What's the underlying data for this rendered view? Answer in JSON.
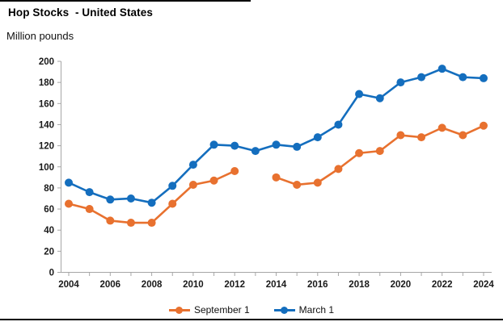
{
  "header": {
    "title": "Hop Stocks  - United States",
    "units_label": "Million pounds"
  },
  "chart_data": {
    "type": "line",
    "title": "Hop Stocks - United States",
    "ylabel": "Million pounds",
    "xlabel": "",
    "ylim": [
      0,
      200
    ],
    "yticks": [
      0,
      20,
      40,
      60,
      80,
      100,
      120,
      140,
      160,
      180,
      200
    ],
    "xticks": [
      2004,
      2006,
      2008,
      2010,
      2012,
      2014,
      2016,
      2018,
      2020,
      2022,
      2024
    ],
    "x": [
      2004,
      2005,
      2006,
      2007,
      2008,
      2009,
      2010,
      2011,
      2012,
      2013,
      2014,
      2015,
      2016,
      2017,
      2018,
      2019,
      2020,
      2021,
      2022,
      2023,
      2024
    ],
    "series": [
      {
        "name": "September 1",
        "color": "#E8712F",
        "values": [
          65,
          60,
          49,
          47,
          47,
          65,
          83,
          87,
          96,
          null,
          90,
          83,
          85,
          98,
          113,
          115,
          130,
          128,
          137,
          130,
          139
        ]
      },
      {
        "name": "March 1",
        "color": "#146EBE",
        "values": [
          85,
          76,
          69,
          70,
          66,
          82,
          102,
          121,
          120,
          115,
          121,
          119,
          128,
          140,
          169,
          165,
          180,
          185,
          193,
          185,
          184
        ]
      }
    ],
    "grid": false,
    "legend_position": "bottom",
    "axis_color": "#A6A6A6",
    "label_color": "#1A1A1A",
    "note": "September 1 series has no data point for 2013 (gap in line)"
  }
}
